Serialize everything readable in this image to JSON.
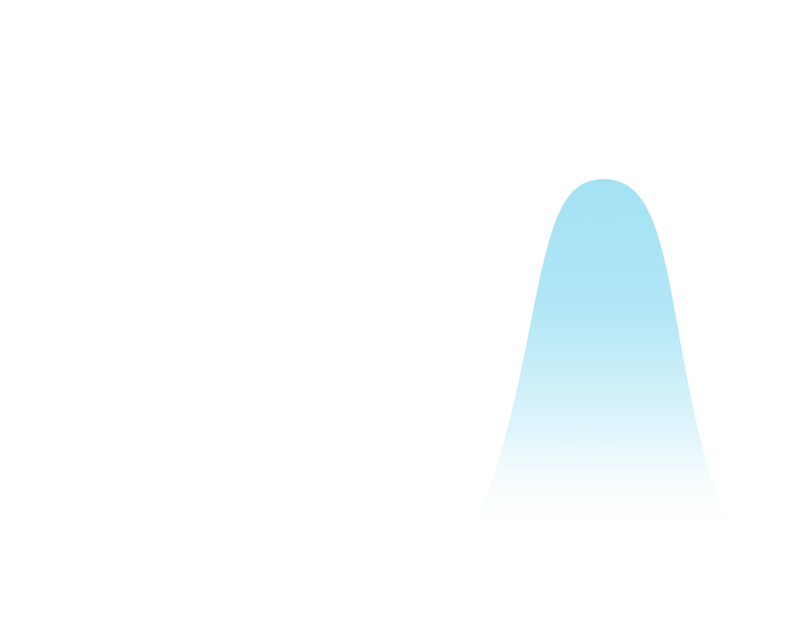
{
  "graphic": {
    "shape": "bell-curve",
    "fill_top_color": "#a3e2f4",
    "fill_bottom_color": "#ffffff",
    "background_color": "#ffffff"
  }
}
